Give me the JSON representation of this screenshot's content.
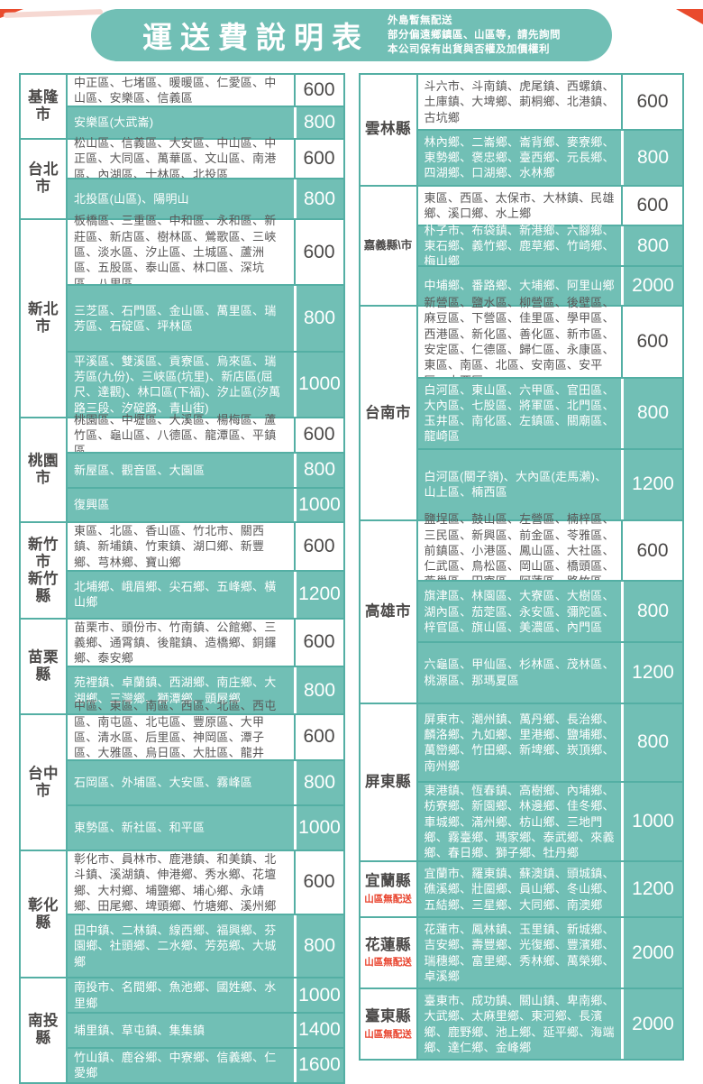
{
  "header": {
    "title": "運送費說明表",
    "notes": [
      "外島暫無配送",
      "部分偏遠鄉鎮區、山區等，請先詢問",
      "本公司保有出貨與否權及加價權利"
    ]
  },
  "colors": {
    "teal": "#71bfb5",
    "teal_border": "#54afa4",
    "district_text_gray": "#595757",
    "fee_text_gray": "#4b4948",
    "note_red": "#e8402a",
    "corner_red": "#e94b2d"
  },
  "columns": [
    {
      "counties": [
        {
          "name": "基隆市",
          "note": "",
          "rows": [
            {
              "areas": "中正區、七堵區、暖暖區、仁愛區、中山區、安樂區、信義區",
              "fee": "600",
              "highlight": false
            },
            {
              "areas": "安樂區(大武崙)",
              "fee": "800",
              "highlight": true
            }
          ]
        },
        {
          "name": "台北市",
          "note": "",
          "rows": [
            {
              "areas": "松山區、信義區、大安區、中山區、中正區、大同區、萬華區、文山區、南港區、內湖區、士林區、北投區",
              "fee": "600",
              "highlight": false
            },
            {
              "areas": "北投區(山區)、陽明山",
              "fee": "800",
              "highlight": true
            }
          ]
        },
        {
          "name": "新北市",
          "note": "",
          "rows": [
            {
              "areas": "板橋區、三重區、中和區、永和區、新莊區、新店區、樹林區、鶯歌區、三峽區、淡水區、汐止區、土城區、蘆洲區、五股區、泰山區、林口區、深坑區、八里區",
              "fee": "600",
              "highlight": false
            },
            {
              "areas": "三芝區、石門區、金山區、萬里區、瑞芳區、石碇區、坪林區",
              "fee": "800",
              "highlight": true
            },
            {
              "areas": "平溪區、雙溪區、貢寮區、烏來區、瑞芳區(九份)、三峽區(坑里)、新店區(屈尺、達觀)、林口區(下福)、汐止區(汐萬路三段、汐碇路、青山街)",
              "fee": "1000",
              "highlight": true
            }
          ]
        },
        {
          "name": "桃園市",
          "note": "",
          "rows": [
            {
              "areas": "桃園區、中壢區、大溪區、楊梅區、蘆竹區、龜山區、八德區、龍潭區、平鎮區",
              "fee": "600",
              "highlight": false
            },
            {
              "areas": "新屋區、觀音區、大園區",
              "fee": "800",
              "highlight": true
            },
            {
              "areas": "復興區",
              "fee": "1000",
              "highlight": true
            }
          ]
        },
        {
          "name": "新竹市\n新竹縣",
          "note": "",
          "rows": [
            {
              "areas": "東區、北區、香山區、竹北市、關西鎮、新埔鎮、竹東鎮、湖口鄉、新豐鄉、芎林鄉、寶山鄉",
              "fee": "600",
              "highlight": false
            },
            {
              "areas": "北埔鄉、峨眉鄉、尖石鄉、五峰鄉、橫山鄉",
              "fee": "1200",
              "highlight": true
            }
          ]
        },
        {
          "name": "苗栗縣",
          "note": "",
          "rows": [
            {
              "areas": "苗栗市、頭份市、竹南鎮、公館鄉、三義鄉、通霄鎮、後龍鎮、造橋鄉、銅鑼鄉、泰安鄉",
              "fee": "600",
              "highlight": false
            },
            {
              "areas": "苑裡鎮、卓蘭鎮、西湖鄉、南庄鄉、大湖鄉、三灣鄉、獅潭鄉、頭屋鄉",
              "fee": "800",
              "highlight": true
            }
          ]
        },
        {
          "name": "台中市",
          "note": "",
          "rows": [
            {
              "areas": "中區、東區、南區、西區、北區、西屯區、南屯區、北屯區、豐原區、大甲區、清水區、后里區、神岡區、潭子區、大雅區、烏日區、大肚區、龍井區、太平區、大里區、沙鹿區、梧棲區",
              "fee": "600",
              "highlight": false
            },
            {
              "areas": "石岡區、外埔區、大安區、霧峰區",
              "fee": "800",
              "highlight": true
            },
            {
              "areas": "東勢區、新社區、和平區",
              "fee": "1000",
              "highlight": true
            }
          ]
        },
        {
          "name": "彰化縣",
          "note": "",
          "rows": [
            {
              "areas": "彰化市、員林市、鹿港鎮、和美鎮、北斗鎮、溪湖鎮、伸港鄉、秀水鄉、花壇鄉、大村鄉、埔鹽鄉、埔心鄉、永靖鄉、田尾鄉、埤頭鄉、竹塘鄉、溪州鄉",
              "fee": "600",
              "highlight": false
            },
            {
              "areas": "田中鎮、二林鎮、線西鄉、福興鄉、芬園鄉、社頭鄉、二水鄉、芳苑鄉、大城鄉",
              "fee": "800",
              "highlight": true
            }
          ]
        },
        {
          "name": "南投縣",
          "note": "",
          "rows": [
            {
              "areas": "南投市、名間鄉、魚池鄉、國姓鄉、水里鄉",
              "fee": "1000",
              "highlight": true
            },
            {
              "areas": "埔里鎮、草屯鎮、集集鎮",
              "fee": "1400",
              "highlight": true
            },
            {
              "areas": "竹山鎮、鹿谷鄉、中寮鄉、信義鄉、仁愛鄉",
              "fee": "1600",
              "highlight": true
            }
          ]
        }
      ]
    },
    {
      "counties": [
        {
          "name": "雲林縣",
          "note": "",
          "rows": [
            {
              "areas": "斗六市、斗南鎮、虎尾鎮、西螺鎮、土庫鎮、大埤鄉、莿桐鄉、北港鎮、古坑鄉",
              "fee": "600",
              "highlight": false
            },
            {
              "areas": "林內鄉、二崙鄉、崙背鄉、麥寮鄉、東勢鄉、褒忠鄉、臺西鄉、元長鄉、四湖鄉、口湖鄉、水林鄉",
              "fee": "800",
              "highlight": true
            }
          ]
        },
        {
          "name": "嘉義縣\\市",
          "note": "",
          "rows": [
            {
              "areas": "東區、西區、太保市、大林鎮、民雄鄉、溪口鄉、水上鄉",
              "fee": "600",
              "highlight": false
            },
            {
              "areas": "朴子市、布袋鎮、新港鄉、六腳鄉、東石鄉、義竹鄉、鹿草鄉、竹崎鄉、梅山鄉",
              "fee": "800",
              "highlight": true
            },
            {
              "areas": "中埔鄉、番路鄉、大埔鄉、阿里山鄉",
              "fee": "2000",
              "highlight": true
            }
          ]
        },
        {
          "name": "台南市",
          "note": "",
          "rows": [
            {
              "areas": "新營區、鹽水區、柳營區、後壁區、麻豆區、下營區、佳里區、學甲區、西港區、新化區、善化區、新市區、安定區、仁德區、歸仁區、永康區、東區、南區、北區、安南區、安平區、中西區",
              "fee": "600",
              "highlight": false
            },
            {
              "areas": "白河區、東山區、六甲區、官田區、大內區、七股區、將軍區、北門區、玉井區、南化區、左鎮區、關廟區、龍崎區",
              "fee": "800",
              "highlight": true
            },
            {
              "areas": "白河區(關子嶺)、大內區(走馬瀨)、山上區、楠西區",
              "fee": "1200",
              "highlight": true
            }
          ]
        },
        {
          "name": "高雄市",
          "note": "",
          "rows": [
            {
              "areas": "鹽埕區、鼓山區、左營區、楠梓區、三民區、新興區、前金區、苓雅區、前鎮區、小港區、鳳山區、大社區、仁武區、鳥松區、岡山區、橋頭區、燕巢區、田寮區、阿蓮區、路竹區",
              "fee": "600",
              "highlight": false
            },
            {
              "areas": "旗津區、林園區、大寮區、大樹區、湖內區、茄萣區、永安區、彌陀區、梓官區、旗山區、美濃區、內門區",
              "fee": "800",
              "highlight": true
            },
            {
              "areas": "六龜區、甲仙區、杉林區、茂林區、桃源區、那瑪夏區",
              "fee": "1200",
              "highlight": true
            }
          ]
        },
        {
          "name": "屏東縣",
          "note": "",
          "rows": [
            {
              "areas": "屏東市、潮州鎮、萬丹鄉、長治鄉、麟洛鄉、九如鄉、里港鄉、鹽埔鄉、萬巒鄉、竹田鄉、新埤鄉、崁頂鄉、南州鄉",
              "fee": "800",
              "highlight": true
            },
            {
              "areas": "東港鎮、恆春鎮、高樹鄉、內埔鄉、枋寮鄉、新園鄉、林邊鄉、佳冬鄉、車城鄉、滿州鄉、枋山鄉、三地門鄉、霧臺鄉、瑪家鄉、泰武鄉、來義鄉、春日鄉、獅子鄉、牡丹鄉",
              "fee": "1000",
              "highlight": true
            }
          ]
        },
        {
          "name": "宜蘭縣",
          "note": "山區無配送",
          "rows": [
            {
              "areas": "宜蘭市、羅東鎮、蘇澳鎮、頭城鎮、礁溪鄉、壯圍鄉、員山鄉、冬山鄉、五結鄉、三星鄉、大同鄉、南澳鄉",
              "fee": "1200",
              "highlight": true
            }
          ]
        },
        {
          "name": "花蓮縣",
          "note": "山區無配送",
          "rows": [
            {
              "areas": "花蓮市、鳳林鎮、玉里鎮、新城鄉、吉安鄉、壽豐鄉、光復鄉、豐濱鄉、瑞穗鄉、富里鄉、秀林鄉、萬榮鄉、卓溪鄉",
              "fee": "2000",
              "highlight": true
            }
          ]
        },
        {
          "name": "臺東縣",
          "note": "山區無配送",
          "rows": [
            {
              "areas": "臺東市、成功鎮、關山鎮、卑南鄉、大武鄉、太麻里鄉、東河鄉、長濱鄉、鹿野鄉、池上鄉、延平鄉、海端鄉、達仁鄉、金峰鄉",
              "fee": "2000",
              "highlight": true
            }
          ]
        }
      ]
    }
  ]
}
